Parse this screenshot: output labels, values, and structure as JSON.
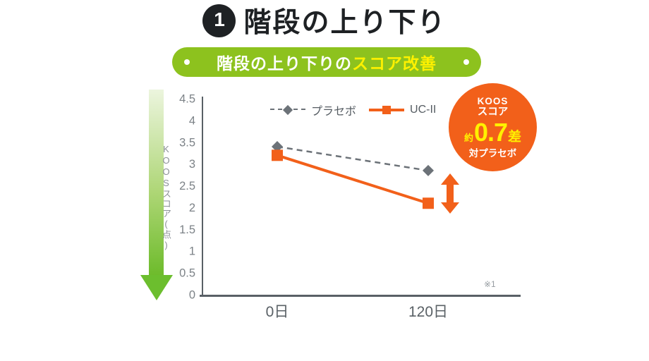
{
  "header": {
    "badge_number": "1",
    "title": "階段の上り下り"
  },
  "pill": {
    "label_plain": "階段の上り下りの",
    "label_accent": "スコア改善"
  },
  "chart_data": {
    "type": "line",
    "title": "階段の上り下りのスコア改善",
    "categories": [
      "0日",
      "120日"
    ],
    "ylabel": "KOOSスコア(点)",
    "ylim": [
      0,
      4.5
    ],
    "yticks": [
      "4.5",
      "4",
      "3.5",
      "3",
      "2.5",
      "2",
      "1.5",
      "1",
      "0.5",
      "0"
    ],
    "grid": false,
    "legend_position": "top",
    "series": [
      {
        "name": "プラセボ",
        "values": [
          3.4,
          2.85
        ],
        "color": "#6C7278",
        "line_style": "dashed",
        "marker": "diamond"
      },
      {
        "name": "UC-II",
        "values": [
          3.2,
          2.1
        ],
        "color": "#F2601A",
        "line_style": "solid",
        "marker": "square"
      }
    ],
    "annotation": {
      "lines": [
        "KOOS",
        "スコア"
      ],
      "approx": "約",
      "value": "0.7",
      "suffix": "差",
      "vs": "対プラセボ"
    },
    "footnote": "※1"
  },
  "colors": {
    "accent_orange": "#F2601A",
    "accent_yellow": "#FFF100",
    "pill_green": "#8DC21E",
    "arrow_green": "#6DBB2B",
    "series_gray": "#6C7278",
    "axis": "#596066",
    "title_black": "#1E2124"
  }
}
